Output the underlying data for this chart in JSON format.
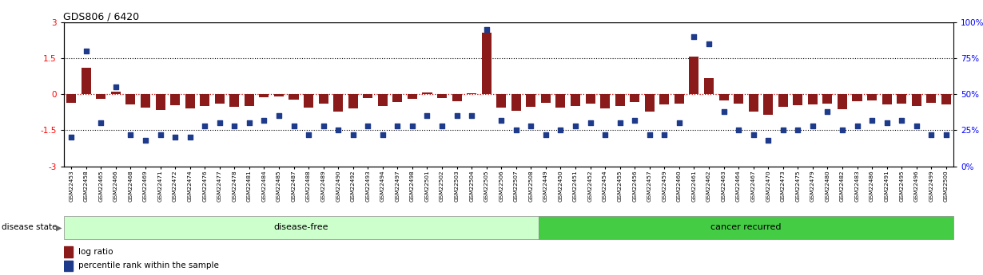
{
  "title": "GDS806 / 6420",
  "samples": [
    "GSM22453",
    "GSM22458",
    "GSM22465",
    "GSM22466",
    "GSM22468",
    "GSM22469",
    "GSM22471",
    "GSM22472",
    "GSM22474",
    "GSM22476",
    "GSM22477",
    "GSM22478",
    "GSM22481",
    "GSM22484",
    "GSM22485",
    "GSM22487",
    "GSM22488",
    "GSM22489",
    "GSM22490",
    "GSM22492",
    "GSM22493",
    "GSM22494",
    "GSM22497",
    "GSM22498",
    "GSM22501",
    "GSM22502",
    "GSM22503",
    "GSM22504",
    "GSM22505",
    "GSM22506",
    "GSM22507",
    "GSM22508",
    "GSM22449",
    "GSM22450",
    "GSM22451",
    "GSM22452",
    "GSM22454",
    "GSM22455",
    "GSM22456",
    "GSM22457",
    "GSM22459",
    "GSM22460",
    "GSM22461",
    "GSM22462",
    "GSM22463",
    "GSM22464",
    "GSM22467",
    "GSM22470",
    "GSM22473",
    "GSM22475",
    "GSM22479",
    "GSM22480",
    "GSM22482",
    "GSM22483",
    "GSM22486",
    "GSM22491",
    "GSM22495",
    "GSM22496",
    "GSM22499",
    "GSM22500"
  ],
  "log_ratio": [
    -0.35,
    1.1,
    -0.18,
    0.1,
    -0.42,
    -0.55,
    -0.65,
    -0.45,
    -0.6,
    -0.5,
    -0.38,
    -0.52,
    -0.48,
    -0.12,
    -0.08,
    -0.22,
    -0.55,
    -0.38,
    -0.72,
    -0.6,
    -0.15,
    -0.48,
    -0.32,
    -0.18,
    0.07,
    -0.15,
    -0.28,
    0.05,
    2.55,
    -0.55,
    -0.68,
    -0.52,
    -0.35,
    -0.55,
    -0.48,
    -0.38,
    -0.58,
    -0.48,
    -0.32,
    -0.72,
    -0.42,
    -0.38,
    1.55,
    0.68,
    -0.25,
    -0.38,
    -0.72,
    -0.85,
    -0.52,
    -0.45,
    -0.42,
    -0.38,
    -0.62,
    -0.28,
    -0.25,
    -0.42,
    -0.38,
    -0.48,
    -0.35,
    -0.42
  ],
  "percentile": [
    20,
    80,
    30,
    55,
    22,
    18,
    22,
    20,
    20,
    28,
    30,
    28,
    30,
    32,
    35,
    28,
    22,
    28,
    25,
    22,
    28,
    22,
    28,
    28,
    35,
    28,
    35,
    35,
    95,
    32,
    25,
    28,
    22,
    25,
    28,
    30,
    22,
    30,
    32,
    22,
    22,
    30,
    90,
    85,
    38,
    25,
    22,
    18,
    25,
    25,
    28,
    38,
    25,
    28,
    32,
    30,
    32,
    28,
    22,
    22
  ],
  "disease_free_count": 32,
  "bar_color": "#8B1A1A",
  "dot_color": "#1E3A8A",
  "left_yticks": [
    -3,
    -1.5,
    0,
    1.5,
    3
  ],
  "right_yticks": [
    0,
    25,
    50,
    75,
    100
  ],
  "ylim_left": [
    -3,
    3
  ],
  "disease_free_color": "#ccffcc",
  "cancer_recurred_color": "#44cc44",
  "legend_items": [
    "log ratio",
    "percentile rank within the sample"
  ]
}
